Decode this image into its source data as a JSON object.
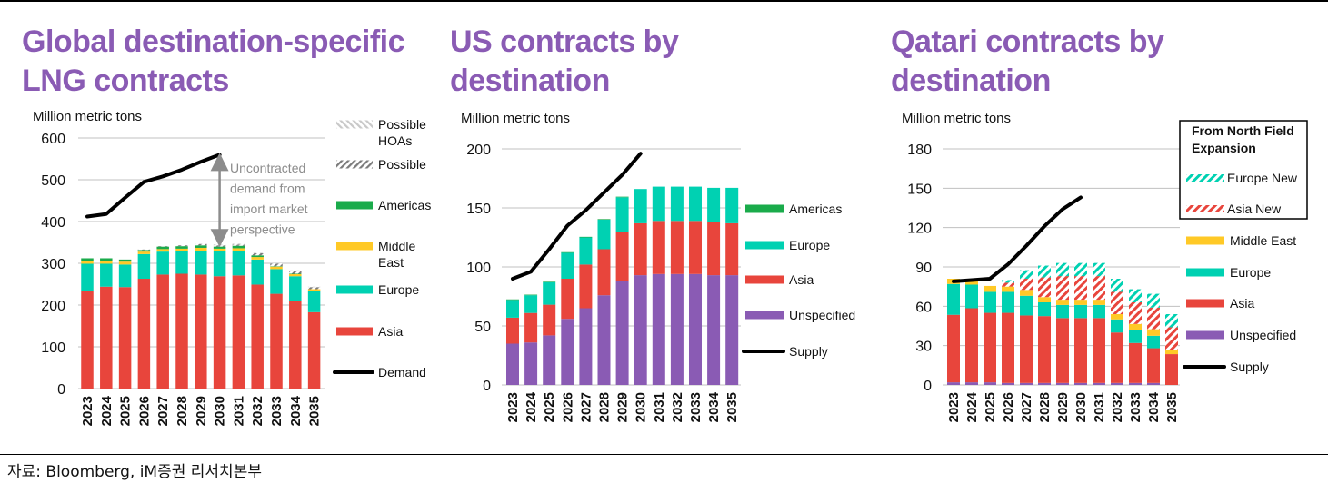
{
  "source": "자료: Bloomberg, iM증권 리서치본부",
  "colors": {
    "title": "#8a5bb4",
    "asia": "#e8453c",
    "europe": "#00d1b2",
    "middle_east": "#ffc926",
    "americas": "#1aab4b",
    "unspecified": "#8a5bb4",
    "line": "#000000",
    "possible": "#888888",
    "possible_hoas": "#c8c8c8",
    "grid": "#c0c0c0",
    "annotation": "#8c8c8c"
  },
  "chart_data": [
    {
      "id": "global",
      "type": "bar",
      "stacked": true,
      "title": "Global destination-specific LNG contracts",
      "ylabel": "Million metric tons",
      "xlabel": "",
      "ylim": [
        0,
        600
      ],
      "yticks": [
        0,
        100,
        200,
        300,
        400,
        500,
        600
      ],
      "grid": true,
      "legend_position": "right",
      "categories": [
        "2023",
        "2024",
        "2025",
        "2026",
        "2027",
        "2028",
        "2029",
        "2030",
        "2031",
        "2032",
        "2033",
        "2034",
        "2035"
      ],
      "series": [
        {
          "name": "Asia",
          "key": "asia",
          "values": [
            233,
            244,
            243,
            263,
            273,
            275,
            273,
            269,
            271,
            249,
            227,
            209,
            183
          ]
        },
        {
          "name": "Europe",
          "key": "europe",
          "values": [
            66,
            55,
            54,
            59,
            55,
            54,
            57,
            60,
            59,
            60,
            59,
            60,
            50
          ]
        },
        {
          "name": "Middle East",
          "key": "middle_east",
          "values": [
            7,
            7,
            7,
            6,
            6,
            6,
            7,
            6,
            6,
            6,
            6,
            5,
            5
          ]
        },
        {
          "name": "Americas",
          "key": "americas",
          "values": [
            6,
            6,
            5,
            4,
            6,
            6,
            6,
            5,
            6,
            4,
            1,
            1,
            0
          ]
        },
        {
          "name": "Possible",
          "key": "possible",
          "pattern": "hatch-dark",
          "values": [
            0,
            0,
            0,
            1,
            1,
            2,
            3,
            3,
            3,
            5,
            6,
            7,
            5
          ]
        },
        {
          "name": "Possible HOAs",
          "key": "possible_hoas",
          "pattern": "hatch-light",
          "values": [
            0,
            0,
            0,
            0,
            0,
            0,
            1,
            2,
            2,
            1,
            1,
            1,
            1
          ]
        }
      ],
      "line": {
        "name": "Demand",
        "categories": [
          "2023",
          "2024",
          "2025",
          "2026",
          "2027",
          "2028",
          "2029",
          "2030"
        ],
        "values": [
          412,
          418,
          457,
          495,
          508,
          524,
          543,
          560
        ]
      },
      "legend": [
        "Possible HOAs",
        "Possible",
        "Americas",
        "Middle East",
        "Europe",
        "Asia",
        "Demand"
      ],
      "annotation": {
        "text": [
          "Uncontracted",
          "demand from",
          "import market",
          "perspective"
        ],
        "category": "2030",
        "from": 343,
        "to": 560
      }
    },
    {
      "id": "us",
      "type": "bar",
      "stacked": true,
      "title": "US contracts by destination",
      "ylabel": "Million metric tons",
      "xlabel": "",
      "ylim": [
        0,
        200
      ],
      "yticks": [
        0,
        50,
        100,
        150,
        200
      ],
      "grid": true,
      "legend_position": "right",
      "categories": [
        "2023",
        "2024",
        "2025",
        "2026",
        "2027",
        "2028",
        "2029",
        "2030",
        "2031",
        "2032",
        "2033",
        "2034",
        "2035"
      ],
      "series": [
        {
          "name": "Unspecified",
          "key": "unspecified",
          "values": [
            35,
            36,
            42,
            56,
            65,
            76,
            88,
            93,
            94,
            94,
            94,
            93,
            93
          ]
        },
        {
          "name": "Asia",
          "key": "asia",
          "values": [
            22,
            25,
            26,
            34,
            37,
            39,
            42,
            44,
            45,
            45,
            45,
            45,
            44
          ]
        },
        {
          "name": "Europe",
          "key": "europe",
          "values": [
            15,
            15,
            19,
            22,
            23,
            25,
            29,
            29,
            29,
            29,
            29,
            29,
            30
          ]
        },
        {
          "name": "Americas",
          "key": "americas",
          "values": [
            0.5,
            0.5,
            0.5,
            0.5,
            0.5,
            0.5,
            0.5,
            0,
            0,
            0,
            0,
            0,
            0
          ]
        }
      ],
      "line": {
        "name": "Supply",
        "categories": [
          "2023",
          "2024",
          "2025",
          "2026",
          "2027",
          "2028",
          "2029",
          "2030"
        ],
        "values": [
          90,
          96,
          115,
          135,
          148,
          163,
          178,
          196
        ]
      },
      "legend": [
        "Americas",
        "Europe",
        "Asia",
        "Unspecified",
        "Supply"
      ]
    },
    {
      "id": "qatar",
      "type": "bar",
      "stacked": true,
      "title": "Qatari contracts by destination",
      "ylabel": "Million metric tons",
      "xlabel": "",
      "ylim": [
        0,
        180
      ],
      "yticks": [
        0,
        30,
        60,
        90,
        120,
        150,
        180
      ],
      "grid": true,
      "legend_position": "right",
      "categories": [
        "2023",
        "2024",
        "2025",
        "2026",
        "2027",
        "2028",
        "2029",
        "2030",
        "2031",
        "2032",
        "2033",
        "2034",
        "2035"
      ],
      "series": [
        {
          "name": "Unspecified",
          "key": "unspecified",
          "values": [
            2,
            2,
            2,
            1.5,
            1.5,
            1.5,
            1.5,
            1.5,
            1.5,
            1.5,
            1.5,
            1.5,
            0
          ]
        },
        {
          "name": "Asia",
          "key": "asia",
          "values": [
            51.5,
            56.5,
            53,
            53.5,
            51.5,
            51,
            49.5,
            49.5,
            49.5,
            38.5,
            30.5,
            26.5,
            23.5
          ]
        },
        {
          "name": "Europe",
          "key": "europe",
          "values": [
            23.5,
            18,
            16,
            16,
            15,
            10.5,
            10,
            10,
            10,
            10,
            10,
            9.5,
            0
          ]
        },
        {
          "name": "Middle East",
          "key": "middle_east",
          "values": [
            4,
            2.5,
            4.5,
            4,
            4.5,
            4,
            4,
            4,
            4,
            4,
            4.5,
            5,
            3.5
          ]
        },
        {
          "name": "Asia New",
          "key": "asia_new",
          "pattern": "hatch-red",
          "values": [
            0,
            0,
            0,
            3,
            8.5,
            15,
            18,
            18,
            18,
            17,
            16.5,
            16.5,
            17
          ]
        },
        {
          "name": "Europe New",
          "key": "europe_new",
          "pattern": "hatch-teal",
          "values": [
            0,
            0,
            0,
            2,
            6.5,
            9,
            10,
            10,
            10,
            10,
            10,
            10.5,
            10
          ]
        }
      ],
      "line": {
        "name": "Supply",
        "categories": [
          "2023",
          "2024",
          "2025",
          "2026",
          "2027",
          "2028",
          "2029",
          "2030"
        ],
        "values": [
          79,
          80,
          81,
          92,
          106,
          121,
          134,
          143
        ]
      },
      "legend_box": {
        "title": [
          "From North Field",
          "Expansion"
        ],
        "items": [
          "Europe New",
          "Asia New"
        ]
      },
      "legend": [
        "Middle East",
        "Europe",
        "Asia",
        "Unspecified",
        "Supply"
      ]
    }
  ]
}
